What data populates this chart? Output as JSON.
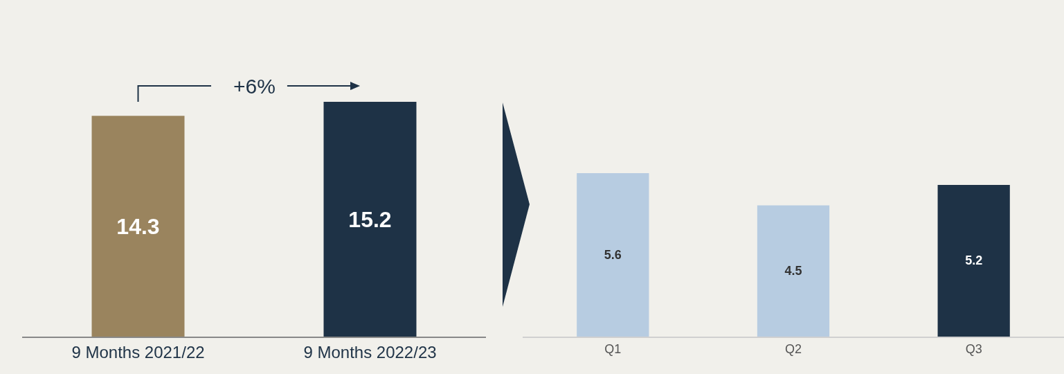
{
  "chart_data": [
    {
      "type": "bar",
      "categories": [
        "9 Months 2021/22",
        "9 Months 2022/23"
      ],
      "values": [
        14.3,
        15.2
      ],
      "colors": [
        "#9a845e",
        "#1e3246"
      ],
      "data_labels": true,
      "annotations": [
        "+6%"
      ]
    },
    {
      "type": "bar",
      "categories": [
        "Q1",
        "Q2",
        "Q3"
      ],
      "values": [
        5.6,
        4.5,
        5.2
      ],
      "colors": [
        "#b7cce1",
        "#b7cce1",
        "#1e3246"
      ],
      "data_labels": true
    }
  ]
}
